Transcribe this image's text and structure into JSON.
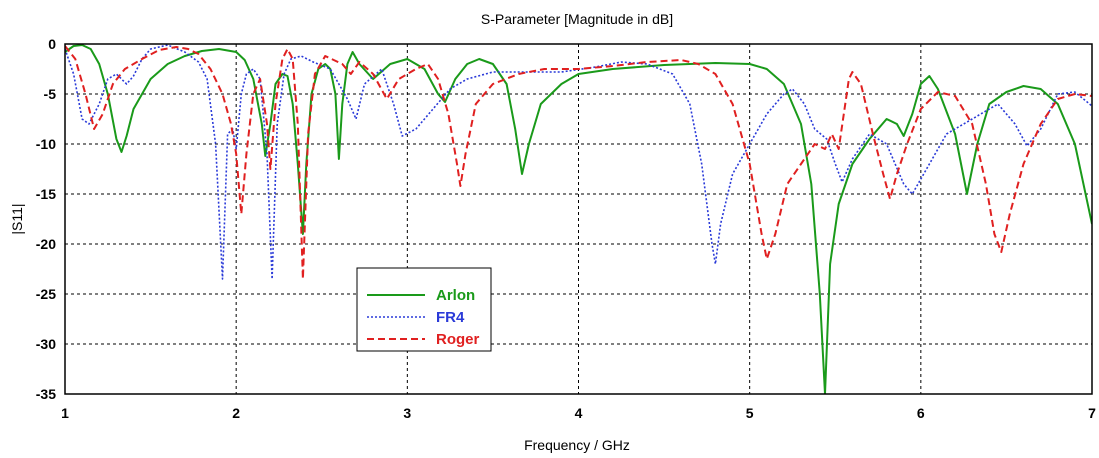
{
  "chart_data": {
    "type": "line",
    "title": "S-Parameter [Magnitude in dB]",
    "xlabel": "Frequency / GHz",
    "ylabel": "|S11|",
    "xlim": [
      1,
      7
    ],
    "ylim": [
      -35,
      0
    ],
    "xticks": [
      "1",
      "2",
      "3",
      "4",
      "5",
      "6",
      "7"
    ],
    "yticks": [
      "0",
      "-5",
      "-10",
      "-15",
      "-20",
      "-25",
      "-30",
      "-35"
    ],
    "grid": true,
    "legend_position": "lower-left-center",
    "series": [
      {
        "name": "Arlon",
        "color": "#1a9a1a",
        "style": "solid",
        "points": [
          [
            1,
            -0.8
          ],
          [
            1.05,
            -0.2
          ],
          [
            1.1,
            -0.1
          ],
          [
            1.15,
            -0.5
          ],
          [
            1.2,
            -2
          ],
          [
            1.25,
            -5
          ],
          [
            1.3,
            -9.5
          ],
          [
            1.33,
            -10.8
          ],
          [
            1.36,
            -9.2
          ],
          [
            1.4,
            -6.5
          ],
          [
            1.5,
            -3.5
          ],
          [
            1.6,
            -2
          ],
          [
            1.7,
            -1.2
          ],
          [
            1.8,
            -0.7
          ],
          [
            1.9,
            -0.5
          ],
          [
            2.0,
            -0.8
          ],
          [
            2.05,
            -1.6
          ],
          [
            2.1,
            -3.5
          ],
          [
            2.15,
            -8
          ],
          [
            2.17,
            -11.2
          ],
          [
            2.2,
            -8
          ],
          [
            2.23,
            -4
          ],
          [
            2.27,
            -3
          ],
          [
            2.3,
            -3.2
          ],
          [
            2.33,
            -6
          ],
          [
            2.36,
            -12
          ],
          [
            2.39,
            -19
          ],
          [
            2.41,
            -12
          ],
          [
            2.44,
            -5
          ],
          [
            2.48,
            -2.5
          ],
          [
            2.52,
            -2
          ],
          [
            2.55,
            -2.5
          ],
          [
            2.58,
            -5
          ],
          [
            2.6,
            -11.5
          ],
          [
            2.62,
            -6
          ],
          [
            2.65,
            -2
          ],
          [
            2.68,
            -0.8
          ],
          [
            2.72,
            -2
          ],
          [
            2.8,
            -3.5
          ],
          [
            2.9,
            -2
          ],
          [
            3.0,
            -1.5
          ],
          [
            3.1,
            -2.5
          ],
          [
            3.18,
            -5
          ],
          [
            3.22,
            -5.8
          ],
          [
            3.28,
            -3.5
          ],
          [
            3.35,
            -2
          ],
          [
            3.42,
            -1.5
          ],
          [
            3.5,
            -2
          ],
          [
            3.58,
            -4
          ],
          [
            3.63,
            -8.5
          ],
          [
            3.67,
            -13
          ],
          [
            3.71,
            -10
          ],
          [
            3.78,
            -6
          ],
          [
            3.9,
            -4
          ],
          [
            4.0,
            -3
          ],
          [
            4.2,
            -2.5
          ],
          [
            4.5,
            -2.1
          ],
          [
            4.8,
            -1.9
          ],
          [
            5.0,
            -2
          ],
          [
            5.1,
            -2.5
          ],
          [
            5.2,
            -4
          ],
          [
            5.3,
            -8
          ],
          [
            5.36,
            -14
          ],
          [
            5.41,
            -25
          ],
          [
            5.44,
            -35
          ],
          [
            5.47,
            -22
          ],
          [
            5.52,
            -16
          ],
          [
            5.6,
            -12
          ],
          [
            5.7,
            -9.5
          ],
          [
            5.8,
            -7.5
          ],
          [
            5.86,
            -8
          ],
          [
            5.9,
            -9.2
          ],
          [
            5.95,
            -7
          ],
          [
            6.0,
            -4
          ],
          [
            6.05,
            -3.2
          ],
          [
            6.1,
            -4.5
          ],
          [
            6.2,
            -9
          ],
          [
            6.27,
            -15
          ],
          [
            6.33,
            -10
          ],
          [
            6.4,
            -6
          ],
          [
            6.5,
            -4.8
          ],
          [
            6.6,
            -4.2
          ],
          [
            6.7,
            -4.5
          ],
          [
            6.8,
            -6
          ],
          [
            6.9,
            -10
          ],
          [
            7.0,
            -18
          ]
        ]
      },
      {
        "name": "FR4",
        "color": "#2a3ad8",
        "style": "dotted",
        "points": [
          [
            1,
            -0.5
          ],
          [
            1.05,
            -3
          ],
          [
            1.1,
            -7.5
          ],
          [
            1.14,
            -8
          ],
          [
            1.2,
            -6
          ],
          [
            1.25,
            -3.5
          ],
          [
            1.3,
            -3
          ],
          [
            1.36,
            -4
          ],
          [
            1.4,
            -3.2
          ],
          [
            1.45,
            -1.5
          ],
          [
            1.5,
            -0.5
          ],
          [
            1.6,
            -0.1
          ],
          [
            1.7,
            -0.8
          ],
          [
            1.78,
            -1.8
          ],
          [
            1.83,
            -3.5
          ],
          [
            1.88,
            -10
          ],
          [
            1.92,
            -23.5
          ],
          [
            1.95,
            -9
          ],
          [
            1.98,
            -8.5
          ],
          [
            2.0,
            -10.5
          ],
          [
            2.03,
            -5
          ],
          [
            2.06,
            -3
          ],
          [
            2.1,
            -2.5
          ],
          [
            2.14,
            -3.5
          ],
          [
            2.18,
            -11
          ],
          [
            2.21,
            -23.5
          ],
          [
            2.24,
            -8
          ],
          [
            2.28,
            -3
          ],
          [
            2.32,
            -1.5
          ],
          [
            2.38,
            -1.2
          ],
          [
            2.45,
            -1.8
          ],
          [
            2.55,
            -2.5
          ],
          [
            2.65,
            -5.5
          ],
          [
            2.7,
            -7.5
          ],
          [
            2.75,
            -4
          ],
          [
            2.85,
            -2.5
          ],
          [
            2.92,
            -6
          ],
          [
            2.97,
            -9.2
          ],
          [
            3.05,
            -8.5
          ],
          [
            3.15,
            -6.5
          ],
          [
            3.25,
            -4.5
          ],
          [
            3.35,
            -3.5
          ],
          [
            3.5,
            -2.8
          ],
          [
            3.7,
            -2.8
          ],
          [
            3.9,
            -2.8
          ],
          [
            4.1,
            -2.3
          ],
          [
            4.25,
            -1.8
          ],
          [
            4.4,
            -2
          ],
          [
            4.55,
            -3
          ],
          [
            4.65,
            -6
          ],
          [
            4.72,
            -12
          ],
          [
            4.78,
            -20
          ],
          [
            4.8,
            -22
          ],
          [
            4.83,
            -18
          ],
          [
            4.9,
            -13
          ],
          [
            5.0,
            -10
          ],
          [
            5.1,
            -7
          ],
          [
            5.2,
            -5
          ],
          [
            5.25,
            -4.5
          ],
          [
            5.32,
            -6
          ],
          [
            5.38,
            -8.5
          ],
          [
            5.45,
            -9.5
          ],
          [
            5.5,
            -12
          ],
          [
            5.54,
            -13.8
          ],
          [
            5.6,
            -11.5
          ],
          [
            5.7,
            -9
          ],
          [
            5.8,
            -10
          ],
          [
            5.9,
            -14
          ],
          [
            5.95,
            -15
          ],
          [
            6.05,
            -12
          ],
          [
            6.15,
            -9
          ],
          [
            6.3,
            -7.5
          ],
          [
            6.45,
            -6
          ],
          [
            6.55,
            -8
          ],
          [
            6.62,
            -10.2
          ],
          [
            6.7,
            -8.5
          ],
          [
            6.8,
            -5
          ],
          [
            6.9,
            -4.8
          ],
          [
            7.0,
            -6.2
          ]
        ]
      },
      {
        "name": "Roger",
        "color": "#e02020",
        "style": "dashed",
        "points": [
          [
            1,
            -0.2
          ],
          [
            1.06,
            -1.5
          ],
          [
            1.12,
            -5
          ],
          [
            1.17,
            -8.5
          ],
          [
            1.22,
            -7
          ],
          [
            1.28,
            -4
          ],
          [
            1.35,
            -2.5
          ],
          [
            1.45,
            -1.5
          ],
          [
            1.55,
            -0.6
          ],
          [
            1.65,
            -0.3
          ],
          [
            1.72,
            -0.5
          ],
          [
            1.78,
            -1
          ],
          [
            1.85,
            -2.5
          ],
          [
            1.92,
            -5
          ],
          [
            1.97,
            -8
          ],
          [
            2.0,
            -11
          ],
          [
            2.03,
            -17
          ],
          [
            2.06,
            -11
          ],
          [
            2.1,
            -5
          ],
          [
            2.14,
            -3.5
          ],
          [
            2.18,
            -8
          ],
          [
            2.2,
            -12.5
          ],
          [
            2.23,
            -6
          ],
          [
            2.27,
            -1.5
          ],
          [
            2.3,
            -0.5
          ],
          [
            2.33,
            -1.5
          ],
          [
            2.36,
            -8
          ],
          [
            2.39,
            -23.5
          ],
          [
            2.42,
            -9
          ],
          [
            2.46,
            -3
          ],
          [
            2.52,
            -1.2
          ],
          [
            2.62,
            -2
          ],
          [
            2.67,
            -3
          ],
          [
            2.72,
            -1.8
          ],
          [
            2.8,
            -3
          ],
          [
            2.88,
            -5.5
          ],
          [
            2.95,
            -3.5
          ],
          [
            3.05,
            -2.5
          ],
          [
            3.12,
            -2
          ],
          [
            3.18,
            -3.5
          ],
          [
            3.24,
            -7
          ],
          [
            3.29,
            -12
          ],
          [
            3.31,
            -14.2
          ],
          [
            3.34,
            -11
          ],
          [
            3.4,
            -6
          ],
          [
            3.5,
            -4
          ],
          [
            3.65,
            -3
          ],
          [
            3.8,
            -2.5
          ],
          [
            4.0,
            -2.5
          ],
          [
            4.2,
            -2.2
          ],
          [
            4.4,
            -1.8
          ],
          [
            4.6,
            -1.6
          ],
          [
            4.7,
            -2
          ],
          [
            4.8,
            -3
          ],
          [
            4.9,
            -6
          ],
          [
            5.0,
            -12
          ],
          [
            5.07,
            -19
          ],
          [
            5.1,
            -21.5
          ],
          [
            5.15,
            -19
          ],
          [
            5.22,
            -14
          ],
          [
            5.3,
            -12
          ],
          [
            5.38,
            -10
          ],
          [
            5.44,
            -10.5
          ],
          [
            5.48,
            -9
          ],
          [
            5.52,
            -10.5
          ],
          [
            5.55,
            -7
          ],
          [
            5.58,
            -3.5
          ],
          [
            5.6,
            -2.8
          ],
          [
            5.65,
            -4
          ],
          [
            5.72,
            -9
          ],
          [
            5.78,
            -13
          ],
          [
            5.82,
            -15.5
          ],
          [
            5.86,
            -13
          ],
          [
            5.92,
            -10
          ],
          [
            6.0,
            -6.5
          ],
          [
            6.1,
            -4.8
          ],
          [
            6.2,
            -5.2
          ],
          [
            6.3,
            -8
          ],
          [
            6.38,
            -14
          ],
          [
            6.43,
            -19
          ],
          [
            6.47,
            -20.8
          ],
          [
            6.52,
            -17
          ],
          [
            6.6,
            -12
          ],
          [
            6.7,
            -8
          ],
          [
            6.8,
            -5.5
          ],
          [
            6.9,
            -5
          ],
          [
            7.0,
            -5.2
          ]
        ]
      }
    ]
  }
}
